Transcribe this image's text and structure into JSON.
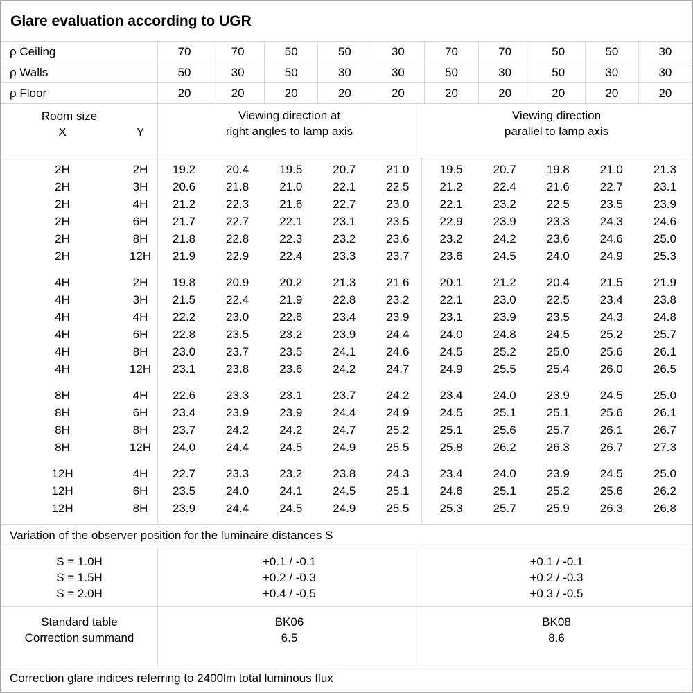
{
  "title": "Glare evaluation according to UGR",
  "colors": {
    "background": "#ffffff",
    "text": "#000000",
    "grid_line": "#d9d9d9",
    "outer_border": "#a6a6a6"
  },
  "reflectance_rows": [
    {
      "label": "ρ Ceiling",
      "values": [
        "70",
        "70",
        "50",
        "50",
        "30",
        "70",
        "70",
        "50",
        "50",
        "30"
      ]
    },
    {
      "label": "ρ Walls",
      "values": [
        "50",
        "30",
        "50",
        "30",
        "30",
        "50",
        "30",
        "50",
        "30",
        "30"
      ]
    },
    {
      "label": "ρ Floor",
      "values": [
        "20",
        "20",
        "20",
        "20",
        "20",
        "20",
        "20",
        "20",
        "20",
        "20"
      ]
    }
  ],
  "matrix_header": {
    "room_size": "Room size",
    "x_label": "X",
    "y_label": "Y",
    "right_angles": {
      "line1": "Viewing direction at",
      "line2": "right angles to lamp axis"
    },
    "parallel": {
      "line1": "Viewing direction",
      "line2": "parallel to lamp axis"
    }
  },
  "ugr_groups": [
    {
      "rows": [
        {
          "x": "2H",
          "y": "2H",
          "right_angles": [
            "19.2",
            "20.4",
            "19.5",
            "20.7",
            "21.0"
          ],
          "parallel": [
            "19.5",
            "20.7",
            "19.8",
            "21.0",
            "21.3"
          ]
        },
        {
          "x": "2H",
          "y": "3H",
          "right_angles": [
            "20.6",
            "21.8",
            "21.0",
            "22.1",
            "22.5"
          ],
          "parallel": [
            "21.2",
            "22.4",
            "21.6",
            "22.7",
            "23.1"
          ]
        },
        {
          "x": "2H",
          "y": "4H",
          "right_angles": [
            "21.2",
            "22.3",
            "21.6",
            "22.7",
            "23.0"
          ],
          "parallel": [
            "22.1",
            "23.2",
            "22.5",
            "23.5",
            "23.9"
          ]
        },
        {
          "x": "2H",
          "y": "6H",
          "right_angles": [
            "21.7",
            "22.7",
            "22.1",
            "23.1",
            "23.5"
          ],
          "parallel": [
            "22.9",
            "23.9",
            "23.3",
            "24.3",
            "24.6"
          ]
        },
        {
          "x": "2H",
          "y": "8H",
          "right_angles": [
            "21.8",
            "22.8",
            "22.3",
            "23.2",
            "23.6"
          ],
          "parallel": [
            "23.2",
            "24.2",
            "23.6",
            "24.6",
            "25.0"
          ]
        },
        {
          "x": "2H",
          "y": "12H",
          "right_angles": [
            "21.9",
            "22.9",
            "22.4",
            "23.3",
            "23.7"
          ],
          "parallel": [
            "23.6",
            "24.5",
            "24.0",
            "24.9",
            "25.3"
          ]
        }
      ]
    },
    {
      "rows": [
        {
          "x": "4H",
          "y": "2H",
          "right_angles": [
            "19.8",
            "20.9",
            "20.2",
            "21.3",
            "21.6"
          ],
          "parallel": [
            "20.1",
            "21.2",
            "20.4",
            "21.5",
            "21.9"
          ]
        },
        {
          "x": "4H",
          "y": "3H",
          "right_angles": [
            "21.5",
            "22.4",
            "21.9",
            "22.8",
            "23.2"
          ],
          "parallel": [
            "22.1",
            "23.0",
            "22.5",
            "23.4",
            "23.8"
          ]
        },
        {
          "x": "4H",
          "y": "4H",
          "right_angles": [
            "22.2",
            "23.0",
            "22.6",
            "23.4",
            "23.9"
          ],
          "parallel": [
            "23.1",
            "23.9",
            "23.5",
            "24.3",
            "24.8"
          ]
        },
        {
          "x": "4H",
          "y": "6H",
          "right_angles": [
            "22.8",
            "23.5",
            "23.2",
            "23.9",
            "24.4"
          ],
          "parallel": [
            "24.0",
            "24.8",
            "24.5",
            "25.2",
            "25.7"
          ]
        },
        {
          "x": "4H",
          "y": "8H",
          "right_angles": [
            "23.0",
            "23.7",
            "23.5",
            "24.1",
            "24.6"
          ],
          "parallel": [
            "24.5",
            "25.2",
            "25.0",
            "25.6",
            "26.1"
          ]
        },
        {
          "x": "4H",
          "y": "12H",
          "right_angles": [
            "23.1",
            "23.8",
            "23.6",
            "24.2",
            "24.7"
          ],
          "parallel": [
            "24.9",
            "25.5",
            "25.4",
            "26.0",
            "26.5"
          ]
        }
      ]
    },
    {
      "rows": [
        {
          "x": "8H",
          "y": "4H",
          "right_angles": [
            "22.6",
            "23.3",
            "23.1",
            "23.7",
            "24.2"
          ],
          "parallel": [
            "23.4",
            "24.0",
            "23.9",
            "24.5",
            "25.0"
          ]
        },
        {
          "x": "8H",
          "y": "6H",
          "right_angles": [
            "23.4",
            "23.9",
            "23.9",
            "24.4",
            "24.9"
          ],
          "parallel": [
            "24.5",
            "25.1",
            "25.1",
            "25.6",
            "26.1"
          ]
        },
        {
          "x": "8H",
          "y": "8H",
          "right_angles": [
            "23.7",
            "24.2",
            "24.2",
            "24.7",
            "25.2"
          ],
          "parallel": [
            "25.1",
            "25.6",
            "25.7",
            "26.1",
            "26.7"
          ]
        },
        {
          "x": "8H",
          "y": "12H",
          "right_angles": [
            "24.0",
            "24.4",
            "24.5",
            "24.9",
            "25.5"
          ],
          "parallel": [
            "25.8",
            "26.2",
            "26.3",
            "26.7",
            "27.3"
          ]
        }
      ]
    },
    {
      "rows": [
        {
          "x": "12H",
          "y": "4H",
          "right_angles": [
            "22.7",
            "23.3",
            "23.2",
            "23.8",
            "24.3"
          ],
          "parallel": [
            "23.4",
            "24.0",
            "23.9",
            "24.5",
            "25.0"
          ]
        },
        {
          "x": "12H",
          "y": "6H",
          "right_angles": [
            "23.5",
            "24.0",
            "24.1",
            "24.5",
            "25.1"
          ],
          "parallel": [
            "24.6",
            "25.1",
            "25.2",
            "25.6",
            "26.2"
          ]
        },
        {
          "x": "12H",
          "y": "8H",
          "right_angles": [
            "23.9",
            "24.4",
            "24.5",
            "24.9",
            "25.5"
          ],
          "parallel": [
            "25.3",
            "25.7",
            "25.9",
            "26.3",
            "26.8"
          ]
        }
      ]
    }
  ],
  "variation_note": "Variation of the observer position for the luminaire distances S",
  "observer_variation": {
    "rows": [
      {
        "label": "S = 1.0H",
        "right_angles": "+0.1 / -0.1",
        "parallel": "+0.1 / -0.1"
      },
      {
        "label": "S = 1.5H",
        "right_angles": "+0.2 / -0.3",
        "parallel": "+0.2 / -0.3"
      },
      {
        "label": "S = 2.0H",
        "right_angles": "+0.4 / -0.5",
        "parallel": "+0.3 / -0.5"
      }
    ]
  },
  "standard": {
    "table_label": "Standard table",
    "summand_label": "Correction summand",
    "right_angles": {
      "table": "BK06",
      "summand": "6.5"
    },
    "parallel": {
      "table": "BK08",
      "summand": "8.6"
    }
  },
  "footer_note": "Correction glare indices referring to 2400lm total luminous flux"
}
